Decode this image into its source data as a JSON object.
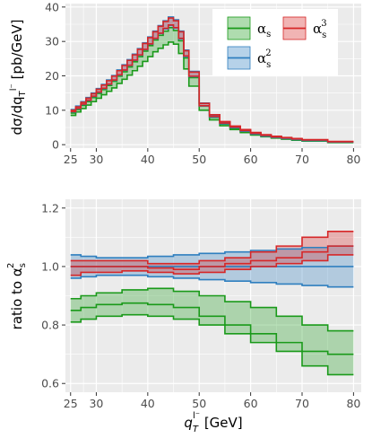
{
  "colors": {
    "alpha_s": "#1a9a1a",
    "alpha_s2": "#2f7fbf",
    "alpha_s3": "#d62728",
    "panel_bg": "#ebebeb",
    "grid": "#ffffff"
  },
  "chart_data": [
    {
      "type": "line",
      "subtype": "step-band",
      "xlabel": "",
      "ylabel": "dσ/dq_T^{l⁻} [pb/GeV]",
      "ylabel_text": "dσ/dq",
      "ylabel_sub": "T",
      "ylabel_sup": "l⁻",
      "ylabel_units": " [pb/GeV]",
      "xlim": [
        24,
        81.5
      ],
      "ylim": [
        -1,
        41
      ],
      "x_ticks": [
        25,
        30,
        40,
        50,
        60,
        70,
        80
      ],
      "x_tick_labels": [
        "25",
        "30",
        "40",
        "50",
        "60",
        "70",
        "80"
      ],
      "y_ticks": [
        0,
        10,
        20,
        30,
        40
      ],
      "y_tick_labels": [
        "0",
        "10",
        "20",
        "30",
        "40"
      ],
      "grid": true,
      "legend_position": "top-right",
      "bin_edges": [
        25,
        26,
        27,
        28,
        29,
        30,
        31,
        32,
        33,
        34,
        35,
        36,
        37,
        38,
        39,
        40,
        41,
        42,
        43,
        44,
        45,
        46,
        47,
        48,
        50,
        52,
        54,
        56,
        58,
        60,
        62,
        64,
        66,
        68,
        70,
        75,
        80
      ],
      "series": [
        {
          "name": "αs",
          "name_base": "α",
          "name_sub": "s",
          "name_sup": "",
          "color": "#1a9a1a",
          "low": [
            8.5,
            9.5,
            10.5,
            11.5,
            12.5,
            13.5,
            14.5,
            15.5,
            16.5,
            17.8,
            19.0,
            20.2,
            21.5,
            22.8,
            24.2,
            25.6,
            27.0,
            28.0,
            29.0,
            29.8,
            29.2,
            26.5,
            22.0,
            17.0,
            10.0,
            7.2,
            5.5,
            4.4,
            3.5,
            2.8,
            2.3,
            1.9,
            1.6,
            1.3,
            1.05,
            0.6
          ],
          "high": [
            9.2,
            10.2,
            11.4,
            12.5,
            13.7,
            14.9,
            16.0,
            17.2,
            18.4,
            19.9,
            21.2,
            22.6,
            24.1,
            25.6,
            27.2,
            28.8,
            30.4,
            31.8,
            33.0,
            34.0,
            33.2,
            30.2,
            25.2,
            19.5,
            11.2,
            7.9,
            6.0,
            4.8,
            3.8,
            3.0,
            2.5,
            2.05,
            1.75,
            1.45,
            1.15,
            0.7
          ]
        },
        {
          "name": "αs²",
          "name_base": "α",
          "name_sub": "s",
          "name_sup": "2",
          "color": "#2f7fbf",
          "low": [
            9.5,
            10.5,
            11.7,
            12.8,
            14.0,
            15.2,
            16.3,
            17.5,
            18.7,
            20.2,
            21.6,
            23.0,
            24.5,
            26.0,
            27.6,
            29.2,
            30.8,
            32.3,
            33.6,
            34.6,
            33.8,
            30.7,
            25.6,
            19.8,
            11.2,
            8.0,
            6.1,
            4.9,
            3.9,
            3.1,
            2.5,
            2.1,
            1.8,
            1.5,
            1.2,
            0.75
          ],
          "high": [
            10.2,
            11.2,
            12.5,
            13.7,
            15.0,
            16.3,
            17.5,
            18.8,
            20.1,
            21.7,
            23.2,
            24.7,
            26.3,
            27.9,
            29.6,
            31.3,
            33.0,
            34.6,
            36.0,
            37.1,
            36.3,
            33.0,
            27.5,
            21.3,
            12.1,
            8.6,
            6.6,
            5.3,
            4.2,
            3.35,
            2.75,
            2.3,
            1.95,
            1.65,
            1.32,
            0.85
          ]
        },
        {
          "name": "αs³",
          "name_base": "α",
          "name_sub": "s",
          "name_sup": "3",
          "color": "#d62728",
          "low": [
            9.6,
            10.6,
            11.8,
            12.9,
            14.1,
            15.3,
            16.4,
            17.6,
            18.8,
            20.3,
            21.7,
            23.1,
            24.6,
            26.1,
            27.7,
            29.3,
            30.9,
            32.4,
            33.8,
            34.8,
            34.0,
            30.9,
            25.8,
            19.9,
            11.3,
            8.2,
            6.3,
            5.1,
            4.1,
            3.3,
            2.7,
            2.25,
            1.95,
            1.65,
            1.35,
            0.85
          ],
          "high": [
            10.0,
            11.0,
            12.3,
            13.5,
            14.8,
            16.1,
            17.3,
            18.6,
            19.9,
            21.5,
            23.0,
            24.5,
            26.1,
            27.7,
            29.4,
            31.1,
            32.8,
            34.4,
            35.8,
            36.8,
            36.0,
            32.8,
            27.3,
            21.1,
            12.0,
            8.7,
            6.7,
            5.4,
            4.4,
            3.55,
            2.9,
            2.45,
            2.1,
            1.8,
            1.48,
            0.95
          ]
        }
      ]
    },
    {
      "type": "line",
      "subtype": "step-band",
      "xlabel": "q_T^{l⁻} [GeV]",
      "xlabel_text": "q",
      "xlabel_sub": "T",
      "xlabel_sup": "l⁻",
      "xlabel_units": " [GeV]",
      "ylabel": "ratio to αs²",
      "ylabel_text": "ratio to α",
      "ylabel_sub": "s",
      "ylabel_sup": "2",
      "xlim": [
        24,
        81.5
      ],
      "ylim": [
        0.57,
        1.23
      ],
      "x_ticks": [
        25,
        30,
        40,
        50,
        60,
        70,
        80
      ],
      "x_tick_labels": [
        "25",
        "30",
        "40",
        "50",
        "60",
        "70",
        "80"
      ],
      "y_ticks": [
        0.6,
        0.8,
        1.0,
        1.2
      ],
      "y_tick_labels": [
        "0.6",
        "0.8",
        "1.0",
        "1.2"
      ],
      "grid": true,
      "bin_edges": [
        25,
        27,
        30,
        35,
        40,
        45,
        50,
        55,
        60,
        65,
        70,
        75,
        80
      ],
      "series": [
        {
          "name": "αs",
          "color": "#1a9a1a",
          "low": [
            0.81,
            0.82,
            0.83,
            0.835,
            0.83,
            0.82,
            0.8,
            0.77,
            0.74,
            0.71,
            0.66,
            0.63
          ],
          "mid": [
            0.85,
            0.86,
            0.87,
            0.875,
            0.87,
            0.86,
            0.83,
            0.8,
            0.77,
            0.74,
            0.71,
            0.7
          ],
          "high": [
            0.89,
            0.9,
            0.91,
            0.92,
            0.925,
            0.915,
            0.9,
            0.88,
            0.86,
            0.83,
            0.8,
            0.78
          ]
        },
        {
          "name": "αs²",
          "color": "#2f7fbf",
          "low": [
            0.96,
            0.965,
            0.97,
            0.97,
            0.965,
            0.96,
            0.955,
            0.95,
            0.945,
            0.94,
            0.935,
            0.93
          ],
          "mid": [
            1.0,
            1.0,
            1.0,
            1.0,
            1.0,
            1.0,
            1.0,
            1.0,
            1.0,
            1.0,
            1.0,
            1.0
          ],
          "high": [
            1.04,
            1.035,
            1.03,
            1.03,
            1.035,
            1.04,
            1.045,
            1.05,
            1.055,
            1.06,
            1.065,
            1.07
          ]
        },
        {
          "name": "αs³",
          "color": "#d62728",
          "low": [
            0.97,
            0.98,
            0.98,
            0.985,
            0.98,
            0.975,
            0.98,
            0.99,
            1.0,
            1.01,
            1.02,
            1.04
          ],
          "mid": [
            1.0,
            1.0,
            1.0,
            1.0,
            0.995,
            0.99,
            1.0,
            1.01,
            1.02,
            1.03,
            1.05,
            1.07
          ],
          "high": [
            1.02,
            1.02,
            1.02,
            1.02,
            1.01,
            1.01,
            1.02,
            1.03,
            1.05,
            1.07,
            1.1,
            1.12
          ]
        }
      ]
    }
  ]
}
